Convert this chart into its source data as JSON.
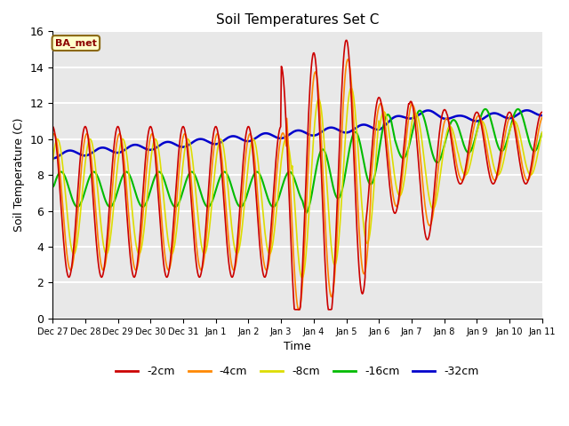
{
  "title": "Soil Temperatures Set C",
  "xlabel": "Time",
  "ylabel": "Soil Temperature (C)",
  "ylim": [
    0,
    16
  ],
  "annotation": "BA_met",
  "background_color": "#e8e8e8",
  "tick_labels": [
    "Dec 27",
    "Dec 28",
    "Dec 29",
    "Dec 30",
    "Dec 31",
    "Jan 1",
    "Jan 2",
    "Jan 3",
    "Jan 4",
    "Jan 5",
    "Jan 6",
    "Jan 7",
    "Jan 8",
    "Jan 9",
    "Jan 10",
    "Jan 11"
  ],
  "tick_positions": [
    0,
    24,
    48,
    72,
    96,
    120,
    144,
    168,
    192,
    216,
    240,
    264,
    288,
    312,
    336,
    360
  ],
  "series": {
    "-2cm": {
      "color": "#cc0000",
      "linewidth": 1.2
    },
    "-4cm": {
      "color": "#ff8800",
      "linewidth": 1.2
    },
    "-8cm": {
      "color": "#dddd00",
      "linewidth": 1.2
    },
    "-16cm": {
      "color": "#00bb00",
      "linewidth": 1.5
    },
    "-32cm": {
      "color": "#0000cc",
      "linewidth": 1.8
    }
  },
  "legend_order": [
    "-2cm",
    "-4cm",
    "-8cm",
    "-16cm",
    "-32cm"
  ]
}
